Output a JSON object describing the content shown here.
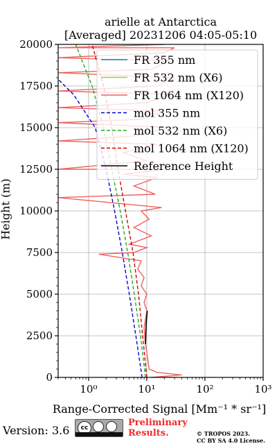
{
  "chart_data": {
    "type": "line",
    "title": "arielle at Antarctica",
    "subtitle": "[Averaged] 20231206 04:05-05:10",
    "xlabel": "Range-Corrected Signal",
    "xlabel_unit": "[Mm⁻¹ * sr⁻¹]",
    "ylabel": "Height (m)",
    "xscale": "log",
    "xlim": [
      0.3,
      1000
    ],
    "ylim": [
      0,
      20000
    ],
    "x_ticks": [
      1,
      10,
      100,
      1000
    ],
    "x_tick_labels": [
      "10⁰",
      "10¹",
      "10²",
      "10³"
    ],
    "y_ticks": [
      0,
      2500,
      5000,
      7500,
      10000,
      12500,
      15000,
      17500,
      20000
    ],
    "y_tick_labels": [
      "0",
      "2500",
      "5000",
      "7500",
      "10000",
      "12500",
      "15000",
      "17500",
      "20000"
    ],
    "grid": true,
    "legend_position": "top-right",
    "series": [
      {
        "name": "FR 355 nm",
        "color": "#1f77b4",
        "style": "solid",
        "points": []
      },
      {
        "name": "FR 532 nm (X6)",
        "color": "#9acd32",
        "style": "solid",
        "points": []
      },
      {
        "name": "FR 1064 nm (X120)",
        "color": "#f06060",
        "style": "solid",
        "points": [
          [
            12,
            0
          ],
          [
            40,
            150
          ],
          [
            15,
            300
          ],
          [
            11,
            500
          ],
          [
            10.5,
            1000
          ],
          [
            10,
            1500
          ],
          [
            9.5,
            2000
          ],
          [
            9.2,
            2500
          ],
          [
            9,
            3000
          ],
          [
            9.5,
            3500
          ],
          [
            10,
            4000
          ],
          [
            9,
            4500
          ],
          [
            10,
            5000
          ],
          [
            8,
            5500
          ],
          [
            9,
            6000
          ],
          [
            7,
            6500
          ],
          [
            8,
            7000
          ],
          [
            1.5,
            7400
          ],
          [
            6,
            7500
          ],
          [
            10,
            7800
          ],
          [
            5,
            8000
          ],
          [
            12,
            8500
          ],
          [
            6,
            9000
          ],
          [
            11,
            9500
          ],
          [
            8,
            10000
          ],
          [
            18,
            10200
          ],
          [
            0.3,
            10800
          ],
          [
            14,
            11000
          ],
          [
            6,
            11500
          ],
          [
            15,
            12000
          ],
          [
            4,
            12200
          ],
          [
            20,
            12500
          ],
          [
            0.3,
            12500
          ],
          [
            10,
            13000
          ],
          [
            4,
            13500
          ],
          [
            15,
            14000
          ],
          [
            0.3,
            14200
          ],
          [
            6,
            14500
          ],
          [
            25,
            15000
          ],
          [
            0.3,
            15300
          ],
          [
            8,
            15500
          ],
          [
            20,
            16000
          ],
          [
            0.3,
            16200
          ],
          [
            10,
            16500
          ],
          [
            25,
            17000
          ],
          [
            0.3,
            17200
          ],
          [
            15,
            17500
          ],
          [
            30,
            18000
          ],
          [
            0.3,
            18300
          ],
          [
            12,
            18500
          ],
          [
            25,
            19000
          ],
          [
            0.3,
            19200
          ],
          [
            20,
            19500
          ],
          [
            30,
            19800
          ],
          [
            0.3,
            19800
          ],
          [
            20,
            20000
          ]
        ]
      },
      {
        "name": "mol 355 nm",
        "color": "#0000cc",
        "style": "dashed",
        "points": [
          [
            8.3,
            0
          ],
          [
            6.5,
            2500
          ],
          [
            5.0,
            5000
          ],
          [
            3.8,
            7500
          ],
          [
            2.8,
            10000
          ],
          [
            2.0,
            12500
          ],
          [
            1.3,
            15000
          ],
          [
            0.55,
            17000
          ],
          [
            0.3,
            17900
          ]
        ]
      },
      {
        "name": "mol 532 nm (X6)",
        "color": "#22aa22",
        "style": "dashed",
        "points": [
          [
            9.5,
            0
          ],
          [
            7.8,
            2500
          ],
          [
            6.1,
            5000
          ],
          [
            4.7,
            7500
          ],
          [
            3.5,
            10000
          ],
          [
            2.5,
            12500
          ],
          [
            1.8,
            15000
          ],
          [
            1.15,
            17500
          ],
          [
            0.6,
            20000
          ]
        ]
      },
      {
        "name": "mol 1064 nm (X120)",
        "color": "#cc0000",
        "style": "dashed",
        "points": [
          [
            10,
            0
          ],
          [
            8.5,
            2500
          ],
          [
            7.2,
            5000
          ],
          [
            5.8,
            7500
          ],
          [
            4.3,
            10000
          ],
          [
            3.2,
            12500
          ],
          [
            2.5,
            15000
          ],
          [
            1.8,
            17500
          ],
          [
            1.15,
            20000
          ]
        ]
      },
      {
        "name": "Reference Height",
        "color": "#000000",
        "style": "solid",
        "points": [
          [
            9.5,
            2000
          ],
          [
            9.6,
            2500
          ],
          [
            9.7,
            3000
          ],
          [
            9.9,
            3500
          ],
          [
            10.2,
            4000
          ]
        ]
      }
    ]
  },
  "footer": {
    "version": "Version: 3.6",
    "license_badge": "cc-by-sa-icon",
    "preliminary_line1": "Preliminary",
    "preliminary_line2": "Results.",
    "copyright_line1": "© TROPOS 2023.",
    "copyright_line2": "CC BY SA 4.0 License.",
    "badge_text_cc": "cc",
    "badge_text_by": "BY",
    "badge_text_sa": "SA"
  }
}
